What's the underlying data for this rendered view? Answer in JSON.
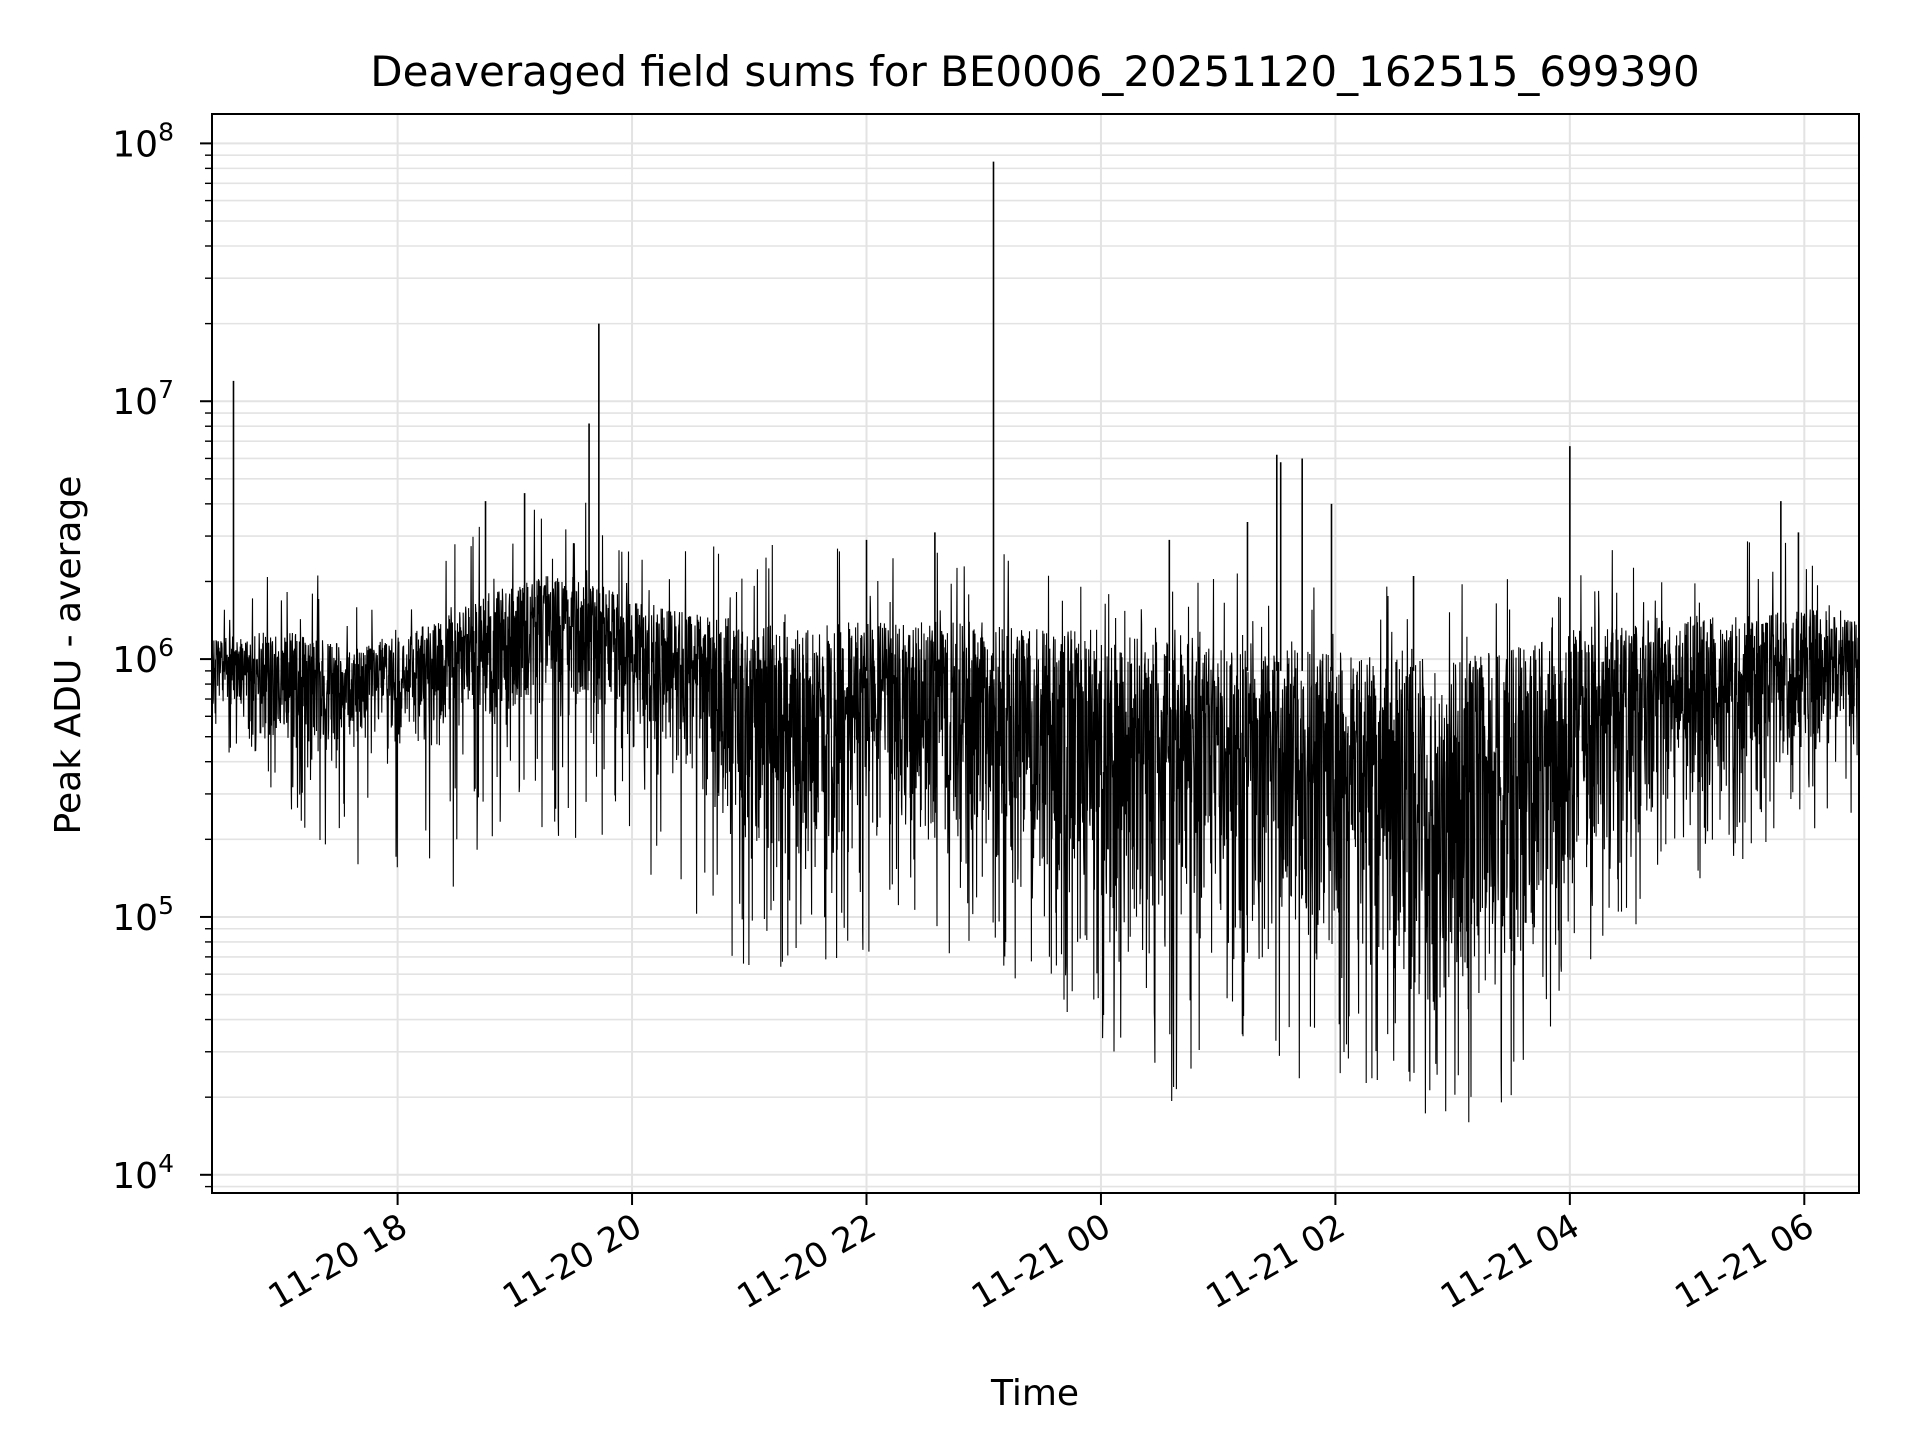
{
  "chart_data": {
    "type": "line",
    "title": "Deaveraged field sums for BE0006_20251120_162515_699390",
    "xlabel": "Time",
    "ylabel": "Peak ADU - average",
    "y_scale": "log",
    "ylim": [
      8500,
      130000000
    ],
    "xlim": [
      "2025-11-20 16:25",
      "2025-11-21 06:28"
    ],
    "grid": true,
    "line_color": "#000000",
    "x_ticks": [
      {
        "value": "2025-11-20 18:00",
        "label": "11-20 18"
      },
      {
        "value": "2025-11-20 20:00",
        "label": "11-20 20"
      },
      {
        "value": "2025-11-20 22:00",
        "label": "11-20 22"
      },
      {
        "value": "2025-11-21 00:00",
        "label": "11-21 00"
      },
      {
        "value": "2025-11-21 02:00",
        "label": "11-21 02"
      },
      {
        "value": "2025-11-21 04:00",
        "label": "11-21 04"
      },
      {
        "value": "2025-11-21 06:00",
        "label": "11-21 06"
      }
    ],
    "y_ticks": [
      {
        "value": 10000,
        "base": "10",
        "exp": "4"
      },
      {
        "value": 100000,
        "base": "10",
        "exp": "5"
      },
      {
        "value": 1000000,
        "base": "10",
        "exp": "6"
      },
      {
        "value": 10000000,
        "base": "10",
        "exp": "7"
      },
      {
        "value": 100000000,
        "base": "10",
        "exp": "8"
      }
    ],
    "envelope": {
      "time": [
        "2025-11-20 16:25",
        "2025-11-20 17:00",
        "2025-11-20 17:40",
        "2025-11-20 18:20",
        "2025-11-20 19:00",
        "2025-11-20 19:30",
        "2025-11-20 20:00",
        "2025-11-20 20:30",
        "2025-11-20 21:00",
        "2025-11-20 21:30",
        "2025-11-20 22:00",
        "2025-11-20 22:30",
        "2025-11-20 23:00",
        "2025-11-20 23:30",
        "2025-11-21 00:00",
        "2025-11-21 00:30",
        "2025-11-21 01:00",
        "2025-11-21 01:30",
        "2025-11-21 02:00",
        "2025-11-21 02:30",
        "2025-11-21 03:00",
        "2025-11-21 03:30",
        "2025-11-21 04:00",
        "2025-11-21 04:30",
        "2025-11-21 05:00",
        "2025-11-21 05:30",
        "2025-11-21 06:00",
        "2025-11-21 06:28"
      ],
      "upper": [
        1200000,
        1300000,
        1100000,
        1400000,
        2000000,
        2200000,
        1700000,
        1500000,
        1400000,
        1400000,
        1400000,
        1400000,
        1400000,
        1300000,
        1300000,
        1200000,
        1100000,
        1100000,
        1100000,
        1000000,
        1000000,
        1100000,
        1300000,
        1400000,
        1500000,
        1500000,
        1600000,
        1400000
      ],
      "lower": [
        600000,
        380000,
        420000,
        430000,
        550000,
        450000,
        400000,
        250000,
        120000,
        100000,
        200000,
        170000,
        120000,
        90000,
        50000,
        45000,
        60000,
        50000,
        50000,
        40000,
        30000,
        40000,
        100000,
        160000,
        230000,
        260000,
        350000,
        500000
      ],
      "min": [
        500000,
        260000,
        140000,
        110000,
        250000,
        190000,
        170000,
        100000,
        60000,
        65000,
        70000,
        80000,
        60000,
        55000,
        29000,
        17000,
        30000,
        20000,
        25000,
        20000,
        14000,
        17000,
        55000,
        80000,
        130000,
        170000,
        200000,
        250000
      ]
    },
    "spikes": [
      {
        "time": "2025-11-20 16:36",
        "value": 12000000
      },
      {
        "time": "2025-11-20 18:45",
        "value": 4100000
      },
      {
        "time": "2025-11-20 19:05",
        "value": 4400000
      },
      {
        "time": "2025-11-20 19:38",
        "value": 8200000
      },
      {
        "time": "2025-11-20 19:43",
        "value": 20000000
      },
      {
        "time": "2025-11-20 22:00",
        "value": 2900000
      },
      {
        "time": "2025-11-20 22:35",
        "value": 3100000
      },
      {
        "time": "2025-11-20 23:05",
        "value": 85000000
      },
      {
        "time": "2025-11-21 00:35",
        "value": 2900000
      },
      {
        "time": "2025-11-21 01:15",
        "value": 3400000
      },
      {
        "time": "2025-11-21 01:30",
        "value": 6200000
      },
      {
        "time": "2025-11-21 01:32",
        "value": 5800000
      },
      {
        "time": "2025-11-21 01:43",
        "value": 6000000
      },
      {
        "time": "2025-11-21 01:58",
        "value": 4000000
      },
      {
        "time": "2025-11-21 02:40",
        "value": 2100000
      },
      {
        "time": "2025-11-21 04:00",
        "value": 6700000
      },
      {
        "time": "2025-11-21 05:48",
        "value": 4100000
      },
      {
        "time": "2025-11-21 05:57",
        "value": 3100000
      }
    ]
  }
}
